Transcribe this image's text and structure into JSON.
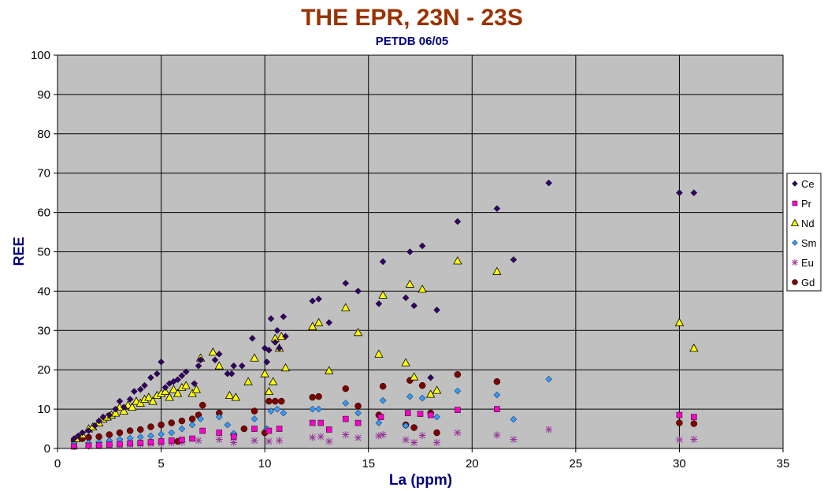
{
  "chart_data": {
    "type": "scatter",
    "title": "THE EPR, 23N - 23S",
    "subtitle": "PETDB 06/05",
    "xlabel": "La (ppm)",
    "ylabel": "REE",
    "xlim": [
      0,
      35
    ],
    "ylim": [
      0,
      100
    ],
    "x_ticks": [
      "0",
      "5",
      "10",
      "15",
      "20",
      "25",
      "30",
      "35"
    ],
    "y_ticks": [
      "0",
      "10",
      "20",
      "30",
      "40",
      "50",
      "60",
      "70",
      "80",
      "90",
      "100"
    ],
    "grid": true,
    "plot_background": "#c0c0c0",
    "legend_position": "right",
    "series": [
      {
        "name": "Ce",
        "marker": "diamond",
        "color": "#330066",
        "points": [
          [
            0.8,
            2.5
          ],
          [
            1.0,
            3.2
          ],
          [
            1.2,
            4.0
          ],
          [
            1.5,
            4.5
          ],
          [
            1.8,
            5.8
          ],
          [
            2.0,
            7.0
          ],
          [
            2.2,
            8.0
          ],
          [
            2.5,
            8.5
          ],
          [
            2.8,
            10.0
          ],
          [
            3.0,
            12.0
          ],
          [
            3.2,
            10.5
          ],
          [
            3.5,
            12.5
          ],
          [
            3.7,
            14.5
          ],
          [
            4.0,
            15.0
          ],
          [
            4.2,
            16.0
          ],
          [
            4.5,
            18.0
          ],
          [
            4.8,
            19.0
          ],
          [
            5.0,
            22.0
          ],
          [
            5.2,
            15.5
          ],
          [
            5.4,
            16.5
          ],
          [
            5.6,
            17.0
          ],
          [
            5.8,
            17.5
          ],
          [
            6.0,
            18.5
          ],
          [
            6.2,
            19.5
          ],
          [
            6.6,
            16.5
          ],
          [
            6.8,
            21.0
          ],
          [
            6.9,
            22.5
          ],
          [
            7.6,
            22.5
          ],
          [
            7.8,
            24.0
          ],
          [
            8.2,
            19.0
          ],
          [
            8.4,
            19.0
          ],
          [
            8.5,
            21.0
          ],
          [
            8.9,
            21.0
          ],
          [
            9.4,
            28.0
          ],
          [
            10.0,
            25.5
          ],
          [
            10.1,
            22.0
          ],
          [
            10.2,
            25.0
          ],
          [
            10.3,
            33.0
          ],
          [
            10.5,
            27.0
          ],
          [
            10.6,
            30.0
          ],
          [
            10.7,
            25.5
          ],
          [
            10.9,
            33.5
          ],
          [
            11.0,
            28.5
          ],
          [
            12.3,
            37.5
          ],
          [
            12.6,
            38.0
          ],
          [
            13.1,
            32.0
          ],
          [
            13.9,
            42.0
          ],
          [
            14.5,
            40.0
          ],
          [
            15.5,
            36.8
          ],
          [
            15.7,
            47.5
          ],
          [
            16.8,
            38.3
          ],
          [
            17.0,
            50.0
          ],
          [
            17.2,
            36.3
          ],
          [
            17.6,
            51.5
          ],
          [
            18.0,
            18.0
          ],
          [
            18.3,
            35.2
          ],
          [
            19.3,
            57.7
          ],
          [
            21.2,
            61.0
          ],
          [
            22.0,
            48.0
          ],
          [
            23.7,
            67.5
          ],
          [
            30.0,
            65.0
          ],
          [
            30.7,
            65.0
          ]
        ]
      },
      {
        "name": "Pr",
        "marker": "square",
        "color": "#ff00cc",
        "points": [
          [
            0.8,
            0.5
          ],
          [
            1.5,
            0.7
          ],
          [
            2.0,
            0.8
          ],
          [
            2.5,
            1.0
          ],
          [
            3.0,
            1.1
          ],
          [
            3.5,
            1.3
          ],
          [
            4.0,
            1.4
          ],
          [
            4.5,
            1.6
          ],
          [
            5.0,
            1.8
          ],
          [
            5.5,
            2.0
          ],
          [
            6.0,
            2.2
          ],
          [
            6.5,
            2.5
          ],
          [
            7.0,
            4.5
          ],
          [
            7.8,
            4.0
          ],
          [
            8.5,
            3.0
          ],
          [
            9.5,
            5.0
          ],
          [
            10.2,
            4.5
          ],
          [
            10.7,
            5.0
          ],
          [
            12.3,
            6.5
          ],
          [
            12.7,
            6.5
          ],
          [
            13.1,
            4.8
          ],
          [
            13.9,
            7.5
          ],
          [
            14.5,
            6.5
          ],
          [
            15.6,
            8.0
          ],
          [
            16.9,
            9.0
          ],
          [
            17.5,
            8.8
          ],
          [
            18.0,
            8.5
          ],
          [
            19.3,
            9.8
          ],
          [
            21.2,
            10.0
          ],
          [
            30.0,
            8.5
          ],
          [
            30.7,
            8.0
          ]
        ]
      },
      {
        "name": "Nd",
        "marker": "triangle",
        "color": "#ffff00",
        "points": [
          [
            0.9,
            2.5
          ],
          [
            1.2,
            3.5
          ],
          [
            1.5,
            5.0
          ],
          [
            1.7,
            5.5
          ],
          [
            2.0,
            6.5
          ],
          [
            2.2,
            7.5
          ],
          [
            2.4,
            8.0
          ],
          [
            2.6,
            8.5
          ],
          [
            2.8,
            9.0
          ],
          [
            3.0,
            10.5
          ],
          [
            3.2,
            9.5
          ],
          [
            3.4,
            11.0
          ],
          [
            3.6,
            10.5
          ],
          [
            3.8,
            12.0
          ],
          [
            4.0,
            11.5
          ],
          [
            4.2,
            12.5
          ],
          [
            4.4,
            13.0
          ],
          [
            4.6,
            12.0
          ],
          [
            4.8,
            13.5
          ],
          [
            5.0,
            14.0
          ],
          [
            5.2,
            14.5
          ],
          [
            5.4,
            13.0
          ],
          [
            5.6,
            15.0
          ],
          [
            5.8,
            14.0
          ],
          [
            6.0,
            15.5
          ],
          [
            6.2,
            16.0
          ],
          [
            6.5,
            14.0
          ],
          [
            6.7,
            15.0
          ],
          [
            6.9,
            23.0
          ],
          [
            7.5,
            24.5
          ],
          [
            7.8,
            21.0
          ],
          [
            8.3,
            13.5
          ],
          [
            8.6,
            13.0
          ],
          [
            9.2,
            17.0
          ],
          [
            9.5,
            23.0
          ],
          [
            10.0,
            19.0
          ],
          [
            10.2,
            14.5
          ],
          [
            10.4,
            17.0
          ],
          [
            10.5,
            28.0
          ],
          [
            10.7,
            25.5
          ],
          [
            10.8,
            28.5
          ],
          [
            11.0,
            20.5
          ],
          [
            12.3,
            31.0
          ],
          [
            12.6,
            32.0
          ],
          [
            13.1,
            19.8
          ],
          [
            13.9,
            35.8
          ],
          [
            14.5,
            29.5
          ],
          [
            15.5,
            24.0
          ],
          [
            15.7,
            39.0
          ],
          [
            16.8,
            21.8
          ],
          [
            17.0,
            41.8
          ],
          [
            17.2,
            18.2
          ],
          [
            17.6,
            40.5
          ],
          [
            18.0,
            13.8
          ],
          [
            18.3,
            14.8
          ],
          [
            19.3,
            47.7
          ],
          [
            21.2,
            45.0
          ],
          [
            30.0,
            32.0
          ],
          [
            30.7,
            25.5
          ]
        ]
      },
      {
        "name": "Sm",
        "marker": "diamond",
        "color": "#3399ff",
        "points": [
          [
            0.8,
            1.2
          ],
          [
            1.5,
            1.4
          ],
          [
            2.0,
            1.6
          ],
          [
            2.5,
            2.0
          ],
          [
            3.0,
            2.3
          ],
          [
            3.5,
            2.6
          ],
          [
            4.0,
            2.9
          ],
          [
            4.5,
            3.2
          ],
          [
            5.0,
            3.6
          ],
          [
            5.5,
            4.0
          ],
          [
            6.0,
            5.0
          ],
          [
            6.5,
            6.0
          ],
          [
            6.9,
            7.5
          ],
          [
            7.8,
            8.0
          ],
          [
            8.2,
            6.0
          ],
          [
            8.5,
            3.8
          ],
          [
            9.5,
            7.5
          ],
          [
            10.1,
            5.0
          ],
          [
            10.3,
            9.5
          ],
          [
            10.6,
            10.0
          ],
          [
            10.9,
            9.0
          ],
          [
            12.3,
            10.0
          ],
          [
            12.6,
            10.0
          ],
          [
            13.9,
            11.5
          ],
          [
            14.5,
            9.0
          ],
          [
            15.5,
            6.5
          ],
          [
            15.7,
            12.2
          ],
          [
            16.8,
            5.8
          ],
          [
            17.0,
            13.2
          ],
          [
            17.6,
            12.8
          ],
          [
            18.3,
            8.0
          ],
          [
            19.3,
            14.6
          ],
          [
            21.2,
            13.6
          ],
          [
            22.0,
            7.4
          ],
          [
            23.7,
            17.6
          ]
        ]
      },
      {
        "name": "Eu",
        "marker": "star",
        "color": "#993399",
        "points": [
          [
            0.8,
            0.5
          ],
          [
            1.5,
            0.6
          ],
          [
            2.0,
            0.7
          ],
          [
            2.5,
            0.8
          ],
          [
            3.0,
            0.9
          ],
          [
            3.5,
            1.0
          ],
          [
            4.0,
            1.1
          ],
          [
            4.5,
            1.2
          ],
          [
            5.0,
            1.3
          ],
          [
            5.5,
            1.4
          ],
          [
            6.0,
            1.6
          ],
          [
            6.8,
            2.0
          ],
          [
            7.8,
            2.3
          ],
          [
            8.5,
            1.5
          ],
          [
            9.5,
            2.0
          ],
          [
            10.2,
            1.8
          ],
          [
            10.7,
            2.0
          ],
          [
            12.3,
            2.8
          ],
          [
            12.7,
            3.0
          ],
          [
            13.1,
            1.8
          ],
          [
            13.9,
            3.5
          ],
          [
            14.5,
            2.7
          ],
          [
            15.5,
            3.2
          ],
          [
            15.7,
            3.5
          ],
          [
            16.8,
            2.2
          ],
          [
            17.2,
            1.5
          ],
          [
            17.6,
            3.3
          ],
          [
            18.3,
            1.5
          ],
          [
            19.3,
            4.0
          ],
          [
            21.2,
            3.4
          ],
          [
            22.0,
            2.3
          ],
          [
            23.7,
            4.8
          ],
          [
            30.0,
            2.2
          ],
          [
            30.7,
            2.3
          ]
        ]
      },
      {
        "name": "Gd",
        "marker": "circle",
        "color": "#800000",
        "points": [
          [
            0.8,
            2.0
          ],
          [
            1.2,
            2.5
          ],
          [
            1.5,
            2.8
          ],
          [
            2.0,
            3.0
          ],
          [
            2.5,
            3.5
          ],
          [
            3.0,
            4.0
          ],
          [
            3.5,
            4.5
          ],
          [
            4.0,
            4.8
          ],
          [
            4.5,
            5.5
          ],
          [
            5.0,
            6.0
          ],
          [
            5.5,
            6.5
          ],
          [
            5.8,
            1.8
          ],
          [
            6.0,
            7.0
          ],
          [
            6.5,
            7.5
          ],
          [
            6.8,
            8.5
          ],
          [
            7.0,
            11.0
          ],
          [
            7.8,
            9.0
          ],
          [
            8.5,
            3.5
          ],
          [
            9.0,
            5.0
          ],
          [
            9.5,
            9.5
          ],
          [
            10.0,
            4.0
          ],
          [
            10.2,
            12.0
          ],
          [
            10.5,
            12.0
          ],
          [
            10.8,
            12.0
          ],
          [
            12.3,
            13.0
          ],
          [
            12.6,
            13.2
          ],
          [
            13.9,
            15.2
          ],
          [
            14.5,
            10.8
          ],
          [
            15.5,
            8.5
          ],
          [
            15.7,
            15.8
          ],
          [
            16.8,
            6.0
          ],
          [
            17.0,
            17.3
          ],
          [
            17.2,
            5.3
          ],
          [
            17.6,
            16.0
          ],
          [
            18.0,
            9.0
          ],
          [
            18.3,
            4.0
          ],
          [
            19.3,
            18.8
          ],
          [
            21.2,
            17.0
          ],
          [
            30.0,
            6.5
          ],
          [
            30.7,
            6.3
          ]
        ]
      }
    ]
  }
}
